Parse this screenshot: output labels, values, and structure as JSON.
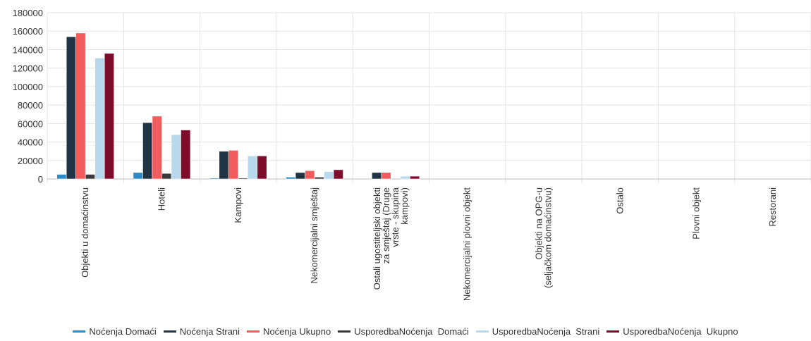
{
  "chart_data": {
    "type": "bar",
    "categories": [
      [
        "Objekti u domaćinstvu"
      ],
      [
        "Hoteli"
      ],
      [
        "Kampovi"
      ],
      [
        "Nekomercijalni smještaj"
      ],
      [
        "Ostali ugostiteljski objekti",
        "za smještaj (Druge",
        "vrste - skupina",
        "kampovi)"
      ],
      [
        "Nekomercijalni plovni objekt"
      ],
      [
        "Objekti na OPG-u",
        "(seljačkom domaćinstvu)"
      ],
      [
        "Ostalo"
      ],
      [
        "Plovni objekt"
      ],
      [
        "Restorani"
      ]
    ],
    "series": [
      {
        "name": "Noćenja Domaći",
        "color": "#2e8ac6",
        "values": [
          5000,
          7000,
          1000,
          2000,
          0,
          0,
          0,
          0,
          0,
          0
        ]
      },
      {
        "name": "Noćenja Strani",
        "color": "#213444",
        "values": [
          154000,
          61000,
          30000,
          7000,
          7000,
          0,
          0,
          0,
          0,
          0
        ]
      },
      {
        "name": "Noćenja Ukupno",
        "color": "#f25c5c",
        "values": [
          158000,
          68000,
          31000,
          9000,
          7000,
          0,
          0,
          0,
          0,
          0
        ]
      },
      {
        "name": "UsporedbaNoćenja  Domaći",
        "color": "#3b3b3b",
        "values": [
          5000,
          6000,
          1000,
          2000,
          0,
          0,
          0,
          0,
          0,
          0
        ]
      },
      {
        "name": "UsporedbaNoćenja  Strani",
        "color": "#b8d9ec",
        "values": [
          131000,
          48000,
          25000,
          8000,
          3000,
          0,
          0,
          0,
          0,
          0
        ]
      },
      {
        "name": "UsporedbaNoćenja  Ukupno",
        "color": "#800c2c",
        "values": [
          136000,
          53000,
          25000,
          10000,
          3000,
          0,
          0,
          0,
          0,
          0
        ]
      }
    ],
    "yticks": [
      "0",
      "20000",
      "40000",
      "60000",
      "80000",
      "100000",
      "120000",
      "140000",
      "160000",
      "180000"
    ],
    "ylim": [
      0,
      180000
    ],
    "grid": true,
    "legend_position": "bottom"
  }
}
